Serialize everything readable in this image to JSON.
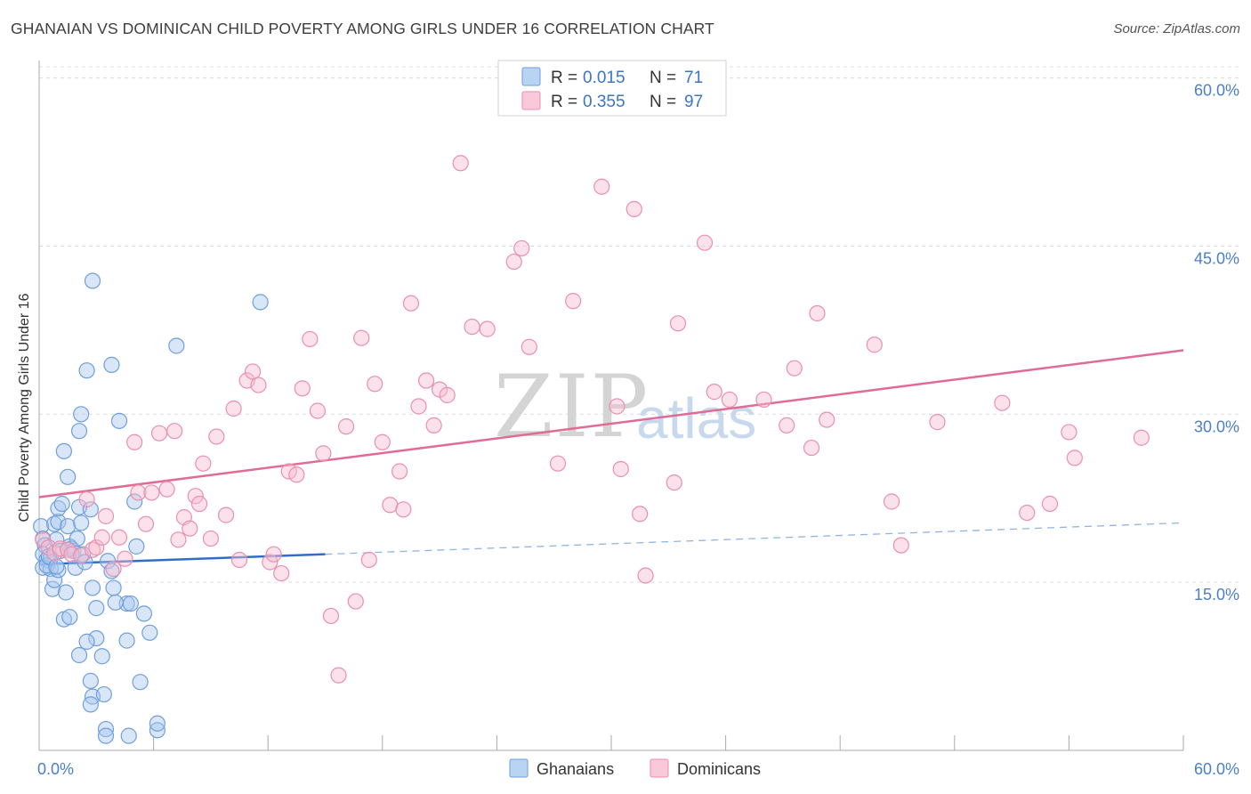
{
  "title": "GHANAIAN VS DOMINICAN CHILD POVERTY AMONG GIRLS UNDER 16 CORRELATION CHART",
  "source": "Source: ZipAtlas.com",
  "watermark": {
    "zip": "ZIP",
    "atlas": "atlas"
  },
  "legend": {
    "rows": [
      {
        "r_label": "R =",
        "r_value": "0.015",
        "n_label": "N =",
        "n_value": "71",
        "color": "#a8c8f0",
        "stroke": "#6f9fdc"
      },
      {
        "r_label": "R =",
        "r_value": "0.355",
        "n_label": "N =",
        "n_value": "97",
        "color": "#f7bcd0",
        "stroke": "#ea8fae"
      }
    ]
  },
  "bottom_legend": [
    {
      "label": "Ghanaians",
      "color": "#a8c8f0",
      "stroke": "#6f9fdc"
    },
    {
      "label": "Dominicans",
      "color": "#f7bcd0",
      "stroke": "#ea8fae"
    }
  ],
  "chart_data": {
    "type": "scatter",
    "title": "GHANAIAN VS DOMINICAN CHILD POVERTY AMONG GIRLS UNDER 16 CORRELATION CHART",
    "xlabel": "",
    "ylabel": "Child Poverty Among Girls Under 16",
    "xlim": [
      0,
      60
    ],
    "ylim": [
      0,
      61
    ],
    "x_tick_labels": [
      "0.0%",
      "60.0%"
    ],
    "y_ticks": [
      15,
      30,
      45,
      60
    ],
    "y_tick_labels": [
      "15.0%",
      "30.0%",
      "45.0%",
      "60.0%"
    ],
    "grid": true,
    "legend_position": "top-center",
    "series": [
      {
        "name": "Ghanaians",
        "color": "#6f9fdc",
        "fill": "#a8c8f0",
        "trend": {
          "x": [
            0,
            15
          ],
          "y": [
            16.6,
            17.5
          ],
          "extended_x": [
            15,
            60
          ],
          "extended_y": [
            17.5,
            20.3
          ]
        },
        "points": [
          [
            0.1,
            20.0
          ],
          [
            0.2,
            18.9
          ],
          [
            0.3,
            18.3
          ],
          [
            0.2,
            17.5
          ],
          [
            0.4,
            17.0
          ],
          [
            0.2,
            16.3
          ],
          [
            0.6,
            16.2
          ],
          [
            0.4,
            16.5
          ],
          [
            0.7,
            14.4
          ],
          [
            0.8,
            15.2
          ],
          [
            0.6,
            17.2
          ],
          [
            0.9,
            18.8
          ],
          [
            0.8,
            20.2
          ],
          [
            1.0,
            20.4
          ],
          [
            1.0,
            21.6
          ],
          [
            1.2,
            22.0
          ],
          [
            1.0,
            16.1
          ],
          [
            1.4,
            14.1
          ],
          [
            1.5,
            20.0
          ],
          [
            1.6,
            18.2
          ],
          [
            1.7,
            18.0
          ],
          [
            1.8,
            17.8
          ],
          [
            1.9,
            16.3
          ],
          [
            2.0,
            18.9
          ],
          [
            2.1,
            21.7
          ],
          [
            2.2,
            20.3
          ],
          [
            2.3,
            17.5
          ],
          [
            2.4,
            16.8
          ],
          [
            1.3,
            11.7
          ],
          [
            1.6,
            11.9
          ],
          [
            1.5,
            24.4
          ],
          [
            1.3,
            26.7
          ],
          [
            2.1,
            28.5
          ],
          [
            2.2,
            30.0
          ],
          [
            2.5,
            33.9
          ],
          [
            2.7,
            21.5
          ],
          [
            2.8,
            14.5
          ],
          [
            3.0,
            12.7
          ],
          [
            3.0,
            10.0
          ],
          [
            2.5,
            9.7
          ],
          [
            2.1,
            8.5
          ],
          [
            3.3,
            8.4
          ],
          [
            2.7,
            6.2
          ],
          [
            2.8,
            4.8
          ],
          [
            3.4,
            5.0
          ],
          [
            2.7,
            4.1
          ],
          [
            3.5,
            1.9
          ],
          [
            3.5,
            1.3
          ],
          [
            4.7,
            1.3
          ],
          [
            6.2,
            1.8
          ],
          [
            6.2,
            2.4
          ],
          [
            5.8,
            10.5
          ],
          [
            5.5,
            12.2
          ],
          [
            4.6,
            13.1
          ],
          [
            4.8,
            13.1
          ],
          [
            4.0,
            13.2
          ],
          [
            3.6,
            16.9
          ],
          [
            3.8,
            16.0
          ],
          [
            5.1,
            18.2
          ],
          [
            5.0,
            22.2
          ],
          [
            4.2,
            29.4
          ],
          [
            3.8,
            34.4
          ],
          [
            2.8,
            41.9
          ],
          [
            7.2,
            36.1
          ],
          [
            11.6,
            40.0
          ],
          [
            5.3,
            6.1
          ],
          [
            4.6,
            9.8
          ],
          [
            3.9,
            14.5
          ],
          [
            1.1,
            17.8
          ],
          [
            0.5,
            17.3
          ],
          [
            0.9,
            16.4
          ]
        ]
      },
      {
        "name": "Dominicans",
        "color": "#ea8fae",
        "fill": "#f7bcd0",
        "trend": {
          "x": [
            0,
            60
          ],
          "y": [
            22.6,
            35.7
          ]
        },
        "points": [
          [
            0.2,
            18.8
          ],
          [
            0.5,
            18.1
          ],
          [
            0.8,
            17.6
          ],
          [
            1.1,
            18.0
          ],
          [
            1.5,
            17.9
          ],
          [
            1.7,
            17.5
          ],
          [
            2.2,
            17.4
          ],
          [
            2.5,
            22.4
          ],
          [
            2.8,
            17.9
          ],
          [
            3.0,
            18.1
          ],
          [
            3.3,
            19.0
          ],
          [
            3.5,
            20.9
          ],
          [
            3.9,
            16.2
          ],
          [
            4.2,
            19.0
          ],
          [
            4.5,
            17.1
          ],
          [
            5.0,
            27.5
          ],
          [
            5.2,
            23.0
          ],
          [
            5.6,
            20.2
          ],
          [
            5.9,
            23.0
          ],
          [
            6.3,
            28.3
          ],
          [
            6.7,
            23.3
          ],
          [
            7.1,
            28.5
          ],
          [
            7.3,
            18.8
          ],
          [
            7.6,
            20.8
          ],
          [
            7.9,
            19.8
          ],
          [
            8.2,
            22.7
          ],
          [
            8.4,
            22.0
          ],
          [
            8.6,
            25.6
          ],
          [
            9.0,
            18.9
          ],
          [
            9.3,
            28.0
          ],
          [
            9.8,
            21.0
          ],
          [
            10.2,
            30.5
          ],
          [
            10.5,
            17.0
          ],
          [
            10.9,
            33.0
          ],
          [
            11.2,
            33.8
          ],
          [
            11.5,
            32.6
          ],
          [
            12.1,
            16.8
          ],
          [
            12.3,
            17.5
          ],
          [
            12.7,
            15.8
          ],
          [
            13.1,
            24.9
          ],
          [
            13.5,
            24.6
          ],
          [
            13.8,
            32.3
          ],
          [
            14.2,
            36.7
          ],
          [
            14.6,
            30.3
          ],
          [
            14.9,
            26.5
          ],
          [
            15.3,
            12.0
          ],
          [
            15.7,
            6.7
          ],
          [
            16.1,
            28.9
          ],
          [
            16.6,
            13.3
          ],
          [
            16.9,
            36.8
          ],
          [
            17.3,
            17.0
          ],
          [
            17.6,
            32.7
          ],
          [
            18.0,
            27.5
          ],
          [
            18.4,
            21.9
          ],
          [
            18.9,
            24.9
          ],
          [
            19.1,
            21.5
          ],
          [
            19.5,
            39.9
          ],
          [
            19.9,
            30.7
          ],
          [
            20.3,
            33.0
          ],
          [
            20.7,
            29.0
          ],
          [
            21.0,
            32.2
          ],
          [
            21.4,
            31.7
          ],
          [
            22.1,
            52.4
          ],
          [
            22.7,
            37.8
          ],
          [
            23.5,
            37.6
          ],
          [
            24.9,
            43.6
          ],
          [
            25.3,
            44.8
          ],
          [
            25.7,
            36.0
          ],
          [
            27.2,
            25.6
          ],
          [
            28.0,
            40.1
          ],
          [
            29.5,
            50.3
          ],
          [
            30.3,
            30.7
          ],
          [
            30.5,
            25.1
          ],
          [
            31.2,
            48.3
          ],
          [
            31.5,
            21.1
          ],
          [
            31.8,
            15.6
          ],
          [
            33.3,
            23.9
          ],
          [
            33.5,
            38.1
          ],
          [
            34.9,
            45.3
          ],
          [
            35.4,
            32.0
          ],
          [
            36.2,
            31.3
          ],
          [
            38.0,
            31.3
          ],
          [
            39.2,
            29.0
          ],
          [
            39.6,
            34.1
          ],
          [
            40.5,
            27.0
          ],
          [
            40.8,
            39.0
          ],
          [
            41.3,
            29.5
          ],
          [
            43.8,
            36.2
          ],
          [
            44.7,
            22.2
          ],
          [
            45.2,
            18.3
          ],
          [
            47.1,
            29.3
          ],
          [
            50.5,
            31.0
          ],
          [
            51.8,
            21.2
          ],
          [
            53.0,
            22.0
          ],
          [
            54.0,
            28.4
          ],
          [
            54.3,
            26.1
          ],
          [
            57.8,
            27.9
          ]
        ]
      }
    ]
  }
}
